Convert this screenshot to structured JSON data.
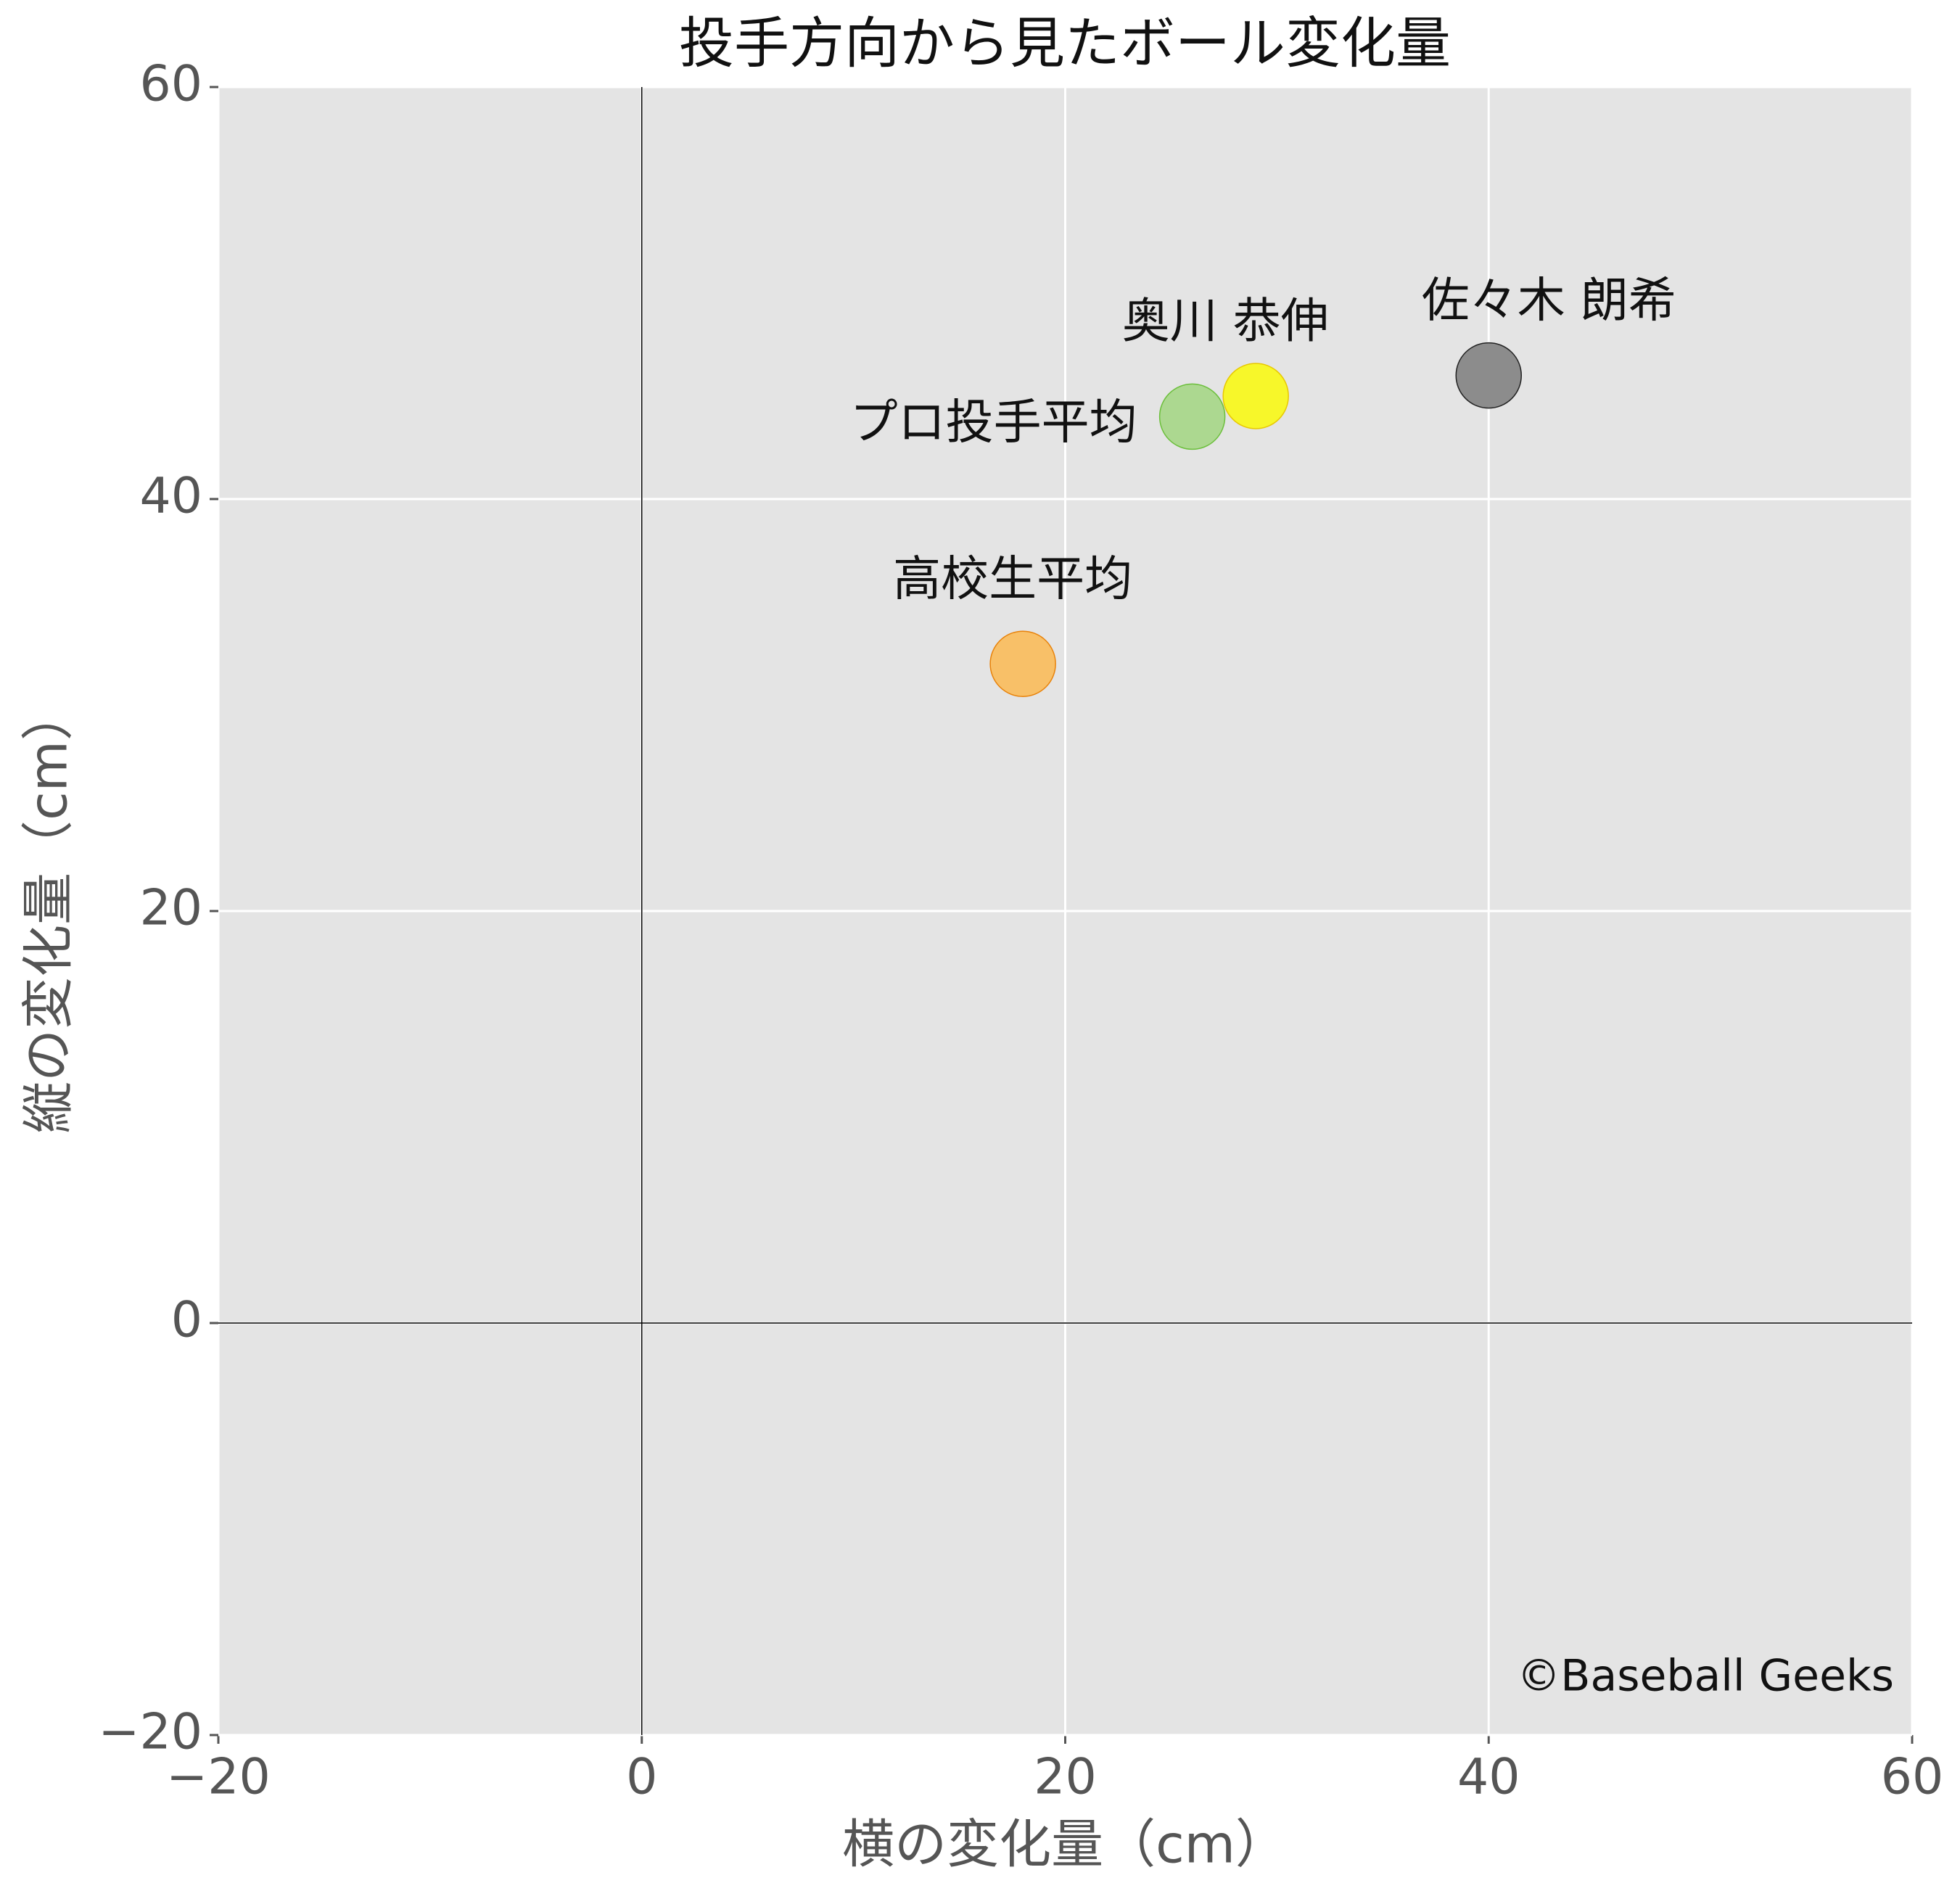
{
  "chart_data": {
    "type": "scatter",
    "title": "投手方向から見たボール変化量",
    "xlabel": "横の変化量（cm）",
    "ylabel": "縦の変化量（cm）",
    "labels": [
      "佐々木 朗希",
      "奥川 恭伸",
      "プロ投手平均",
      "高校生平均"
    ],
    "x": [
      40,
      29,
      26,
      18
    ],
    "values": [
      46,
      45,
      44,
      32
    ],
    "colors": [
      "#8c8c8c",
      "#f7f72a",
      "#acd890",
      "#f8c068"
    ],
    "edge_colors": [
      "#222222",
      "#e8c800",
      "#6cbf3c",
      "#e8820a"
    ],
    "xlim": [
      -20,
      60
    ],
    "ylim": [
      -20,
      60
    ],
    "xticks": [
      {
        "value": -20,
        "label": "−20"
      },
      0,
      20,
      40,
      60
    ],
    "yticks": [
      {
        "value": -20,
        "label": "−20"
      },
      0,
      20,
      40,
      60
    ],
    "grid": true,
    "background": "#e4e4e4",
    "annotation": "©Baseball Geeks"
  }
}
